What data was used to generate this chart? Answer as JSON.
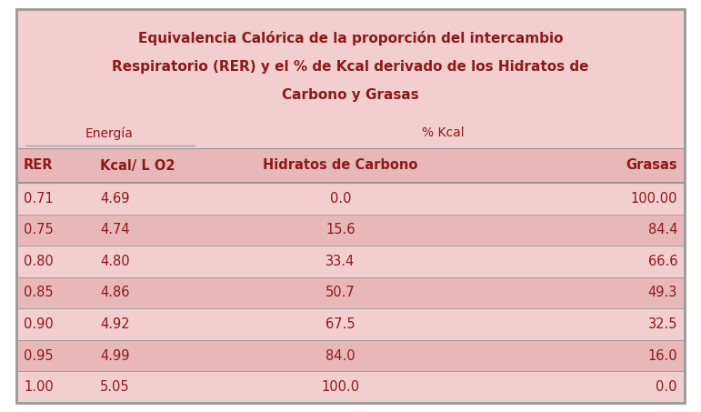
{
  "title_line1": "Equivalencia Calórica de la proporción del intercambio",
  "title_line2": "Respiratorio (RER) y el % de Kcal derivado de los Hidratos de",
  "title_line3": "Carbono y Grasas",
  "subheader1": "Energía",
  "subheader2": "% Kcal",
  "col_headers": [
    "RER",
    "Kcal/ L O2",
    "Hidratos de Carbono",
    "Grasas"
  ],
  "rows": [
    [
      "0.71",
      "4.69",
      "0.0",
      "100.00"
    ],
    [
      "0.75",
      "4.74",
      "15.6",
      "84.4"
    ],
    [
      "0.80",
      "4.80",
      "33.4",
      "66.6"
    ],
    [
      "0.85",
      "4.86",
      "50.7",
      "49.3"
    ],
    [
      "0.90",
      "4.92",
      "67.5",
      "32.5"
    ],
    [
      "0.95",
      "4.99",
      "84.0",
      "16.0"
    ],
    [
      "1.00",
      "5.05",
      "100.0",
      "0.0"
    ]
  ],
  "title_color": "#8B1A1A",
  "header_color": "#8B1A1A",
  "data_color": "#8B1A1A",
  "bg_color_light": "#F2CECE",
  "bg_color_dark": "#E8B8B8",
  "border_color": "#999999",
  "outer_bg": "#F2CECE",
  "title_bg": "#F2CECE",
  "white_bg": "#FFFFFF"
}
